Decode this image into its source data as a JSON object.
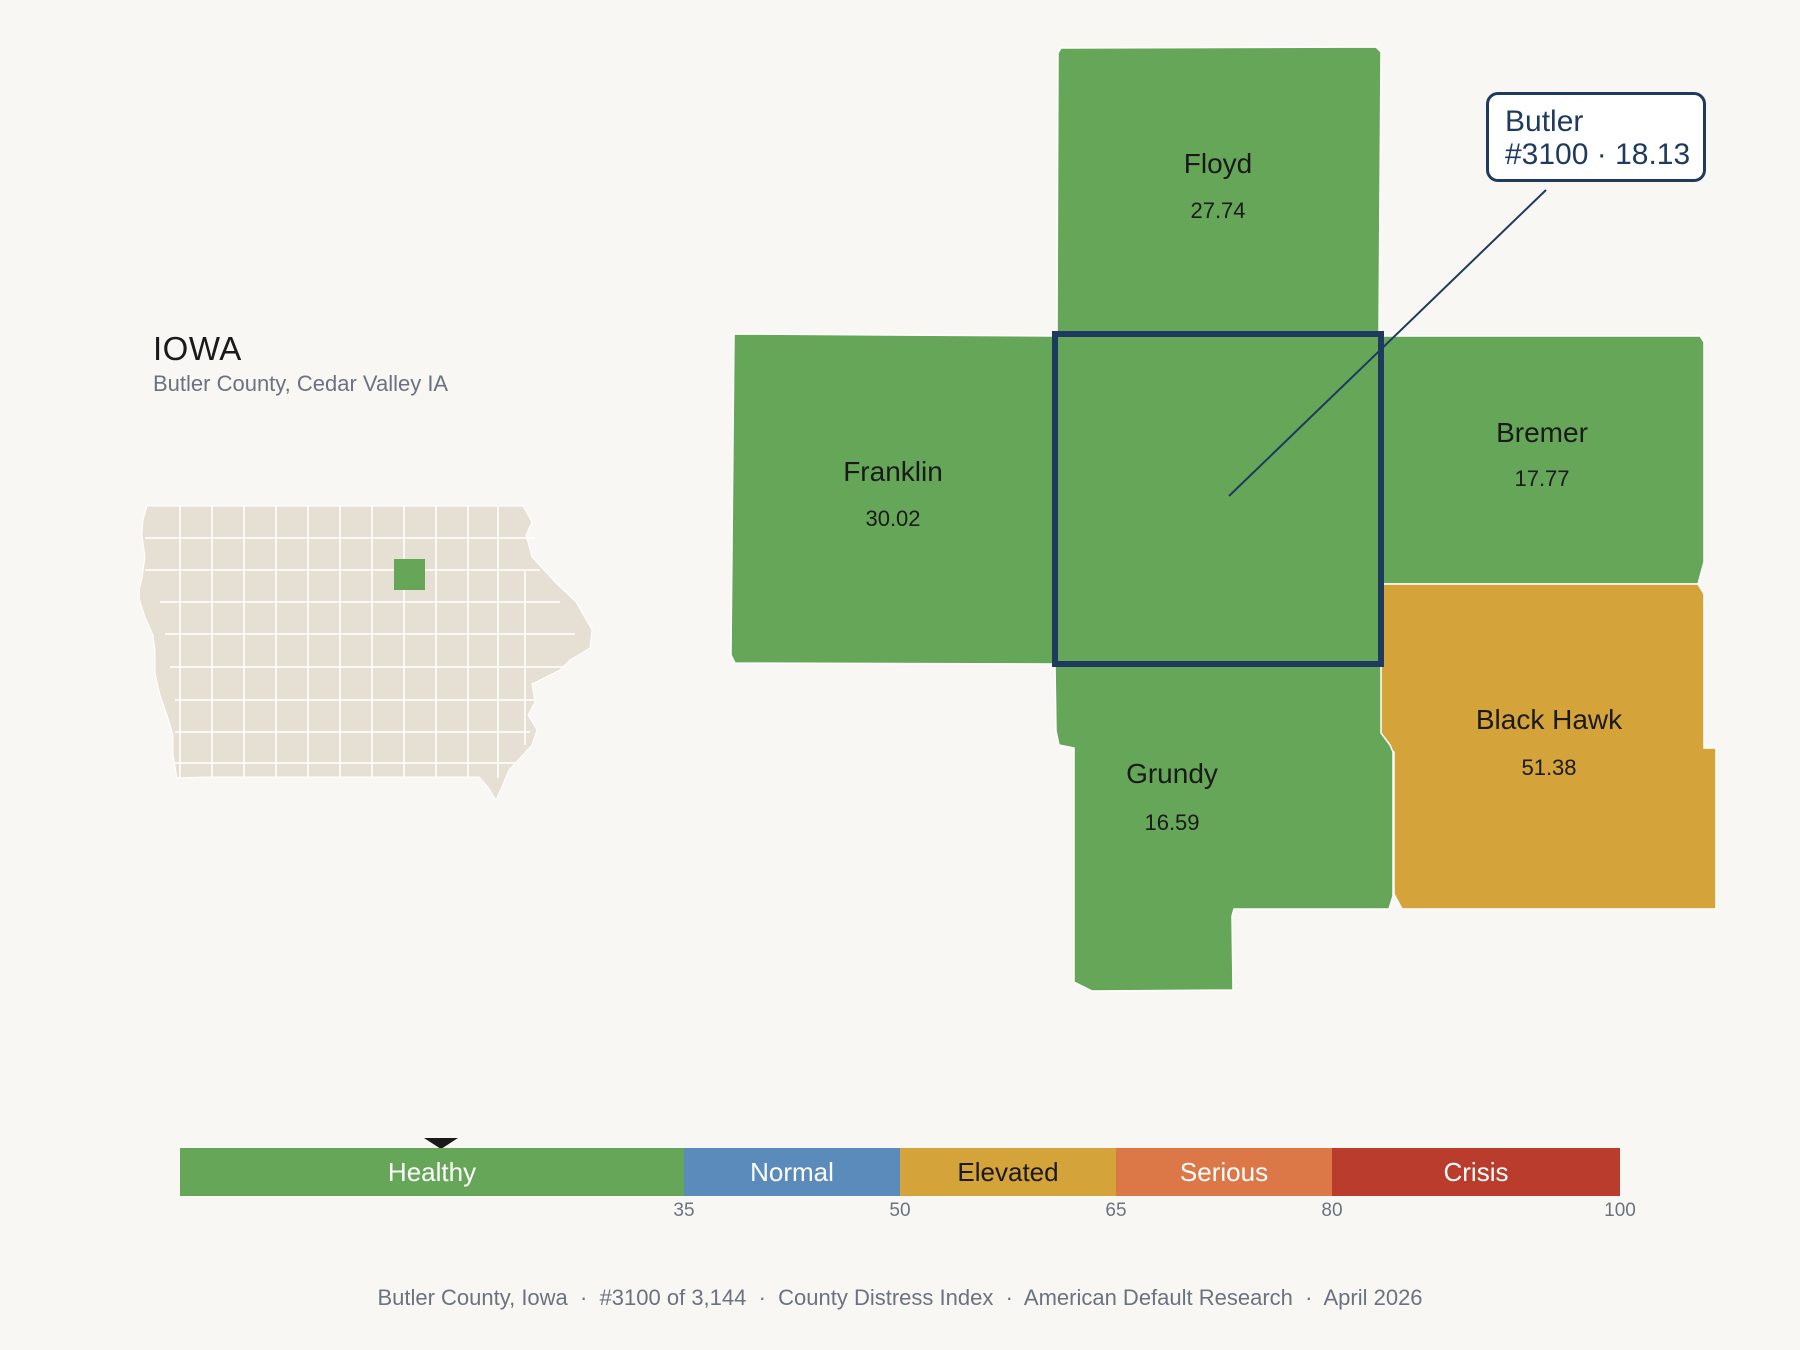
{
  "header": {
    "state": "IOWA",
    "subtitle": "Butler County, Cedar Valley IA"
  },
  "colors": {
    "healthy": "#66a659",
    "normal": "#5b8bbb",
    "elevated": "#d4a33a",
    "serious": "#dc7748",
    "crisis": "#b93c2c",
    "inset_base": "#e6e0d4",
    "highlight_border": "#1e3a5f"
  },
  "counties": [
    {
      "name": "Floyd",
      "value": "27.74",
      "status": "healthy"
    },
    {
      "name": "Franklin",
      "value": "30.02",
      "status": "healthy"
    },
    {
      "name": "Bremer",
      "value": "17.77",
      "status": "healthy"
    },
    {
      "name": "Grundy",
      "value": "16.59",
      "status": "healthy"
    },
    {
      "name": "Black Hawk",
      "value": "51.38",
      "status": "elevated"
    },
    {
      "name": "Butler",
      "value": "18.13",
      "status": "healthy",
      "selected": true
    }
  ],
  "callout": {
    "line1": "Butler",
    "line2": "#3100 · 18.13"
  },
  "legend": {
    "segments": [
      {
        "label": "Healthy",
        "from": 0,
        "to": 35
      },
      {
        "label": "Normal",
        "from": 35,
        "to": 50
      },
      {
        "label": "Elevated",
        "from": 50,
        "to": 65
      },
      {
        "label": "Serious",
        "from": 65,
        "to": 80
      },
      {
        "label": "Crisis",
        "from": 80,
        "to": 100
      }
    ],
    "ticks": [
      "35",
      "50",
      "65",
      "80",
      "100"
    ],
    "marker_value": 18.13
  },
  "footer": {
    "text": "Butler County, Iowa  ·  #3100 of 3,144  ·  County Distress Index  ·  American Default Research  ·  April 2026"
  }
}
